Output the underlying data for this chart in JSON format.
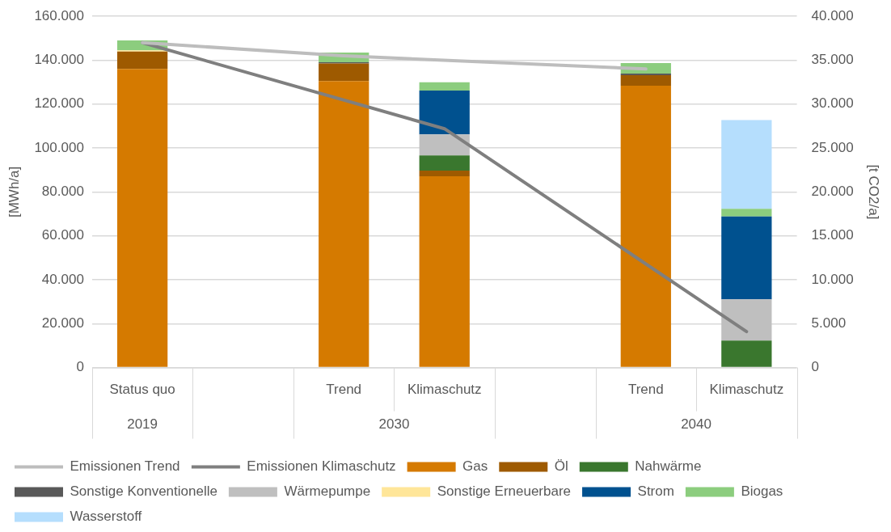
{
  "chart_data": {
    "type": "bar",
    "stacked": true,
    "ylabel": "[MWh/a]",
    "y2label": "[t CO2/a]",
    "categories": [
      "Status quo",
      null,
      "Trend",
      "Klimaschutz",
      null,
      "Trend",
      "Klimaschutz"
    ],
    "annotations": [
      "2019",
      "2030",
      "2040"
    ],
    "series": [
      {
        "name": "Gas",
        "color": "#d57a00",
        "values": [
          136000,
          null,
          130500,
          87100,
          null,
          128400,
          null
        ]
      },
      {
        "name": "Öl",
        "color": "#9e5a00",
        "values": [
          8000,
          null,
          8000,
          2600,
          null,
          4800,
          null
        ]
      },
      {
        "name": "Nahwärme",
        "color": "#3a772e",
        "values": [
          null,
          null,
          null,
          6900,
          null,
          null,
          12300
        ]
      },
      {
        "name": "Sonstige Konventionelle",
        "color": "#595959",
        "values": [
          null,
          null,
          600,
          null,
          null,
          700,
          null
        ]
      },
      {
        "name": "Wärmepumpe",
        "color": "#bfbfbf",
        "values": [
          null,
          null,
          null,
          9600,
          null,
          null,
          18800
        ]
      },
      {
        "name": "Sonstige Erneuerbare",
        "color": "#ffe699",
        "values": [
          500,
          null,
          null,
          null,
          null,
          null,
          null
        ]
      },
      {
        "name": "Strom",
        "color": "#00518f",
        "values": [
          null,
          null,
          null,
          20000,
          null,
          null,
          37700
        ]
      },
      {
        "name": "Biogas",
        "color": "#8ccd7e",
        "values": [
          4500,
          null,
          4400,
          3800,
          null,
          4800,
          3500
        ]
      },
      {
        "name": "Wasserstoff",
        "color": "#b5defd",
        "values": [
          null,
          null,
          null,
          null,
          null,
          null,
          40400
        ]
      },
      {
        "name": "Emissionen Trend",
        "type": "line",
        "axis": "y2",
        "color": "#bdbdbd",
        "values": [
          37000,
          null,
          35500,
          null,
          null,
          34000,
          null
        ]
      },
      {
        "name": "Emissionen Klimaschutz",
        "type": "line",
        "axis": "y2",
        "color": "#7f7f7f",
        "values": [
          37000,
          null,
          null,
          27200,
          null,
          null,
          4100
        ]
      }
    ],
    "ylim": [
      0,
      160000
    ],
    "yticks": [
      {
        "value": 0,
        "label": "0"
      },
      {
        "value": 20000,
        "label": "20.000"
      },
      {
        "value": 40000,
        "label": "40.000"
      },
      {
        "value": 60000,
        "label": "60.000"
      },
      {
        "value": 80000,
        "label": "80.000"
      },
      {
        "value": 100000,
        "label": "100.000"
      },
      {
        "value": 120000,
        "label": "120.000"
      },
      {
        "value": 140000,
        "label": "140.000"
      },
      {
        "value": 160000,
        "label": "160.000"
      }
    ],
    "y2lim": [
      0,
      40000
    ],
    "y2ticks": [
      {
        "value": 0,
        "label": "0"
      },
      {
        "value": 5000,
        "label": "5.000"
      },
      {
        "value": 10000,
        "label": "10.000"
      },
      {
        "value": 15000,
        "label": "15.000"
      },
      {
        "value": 20000,
        "label": "20.000"
      },
      {
        "value": 25000,
        "label": "25.000"
      },
      {
        "value": 30000,
        "label": "30.000"
      },
      {
        "value": 35000,
        "label": "35.000"
      },
      {
        "value": 40000,
        "label": "40.000"
      }
    ],
    "grid": "y",
    "legend": "bottom",
    "marker": "none"
  }
}
